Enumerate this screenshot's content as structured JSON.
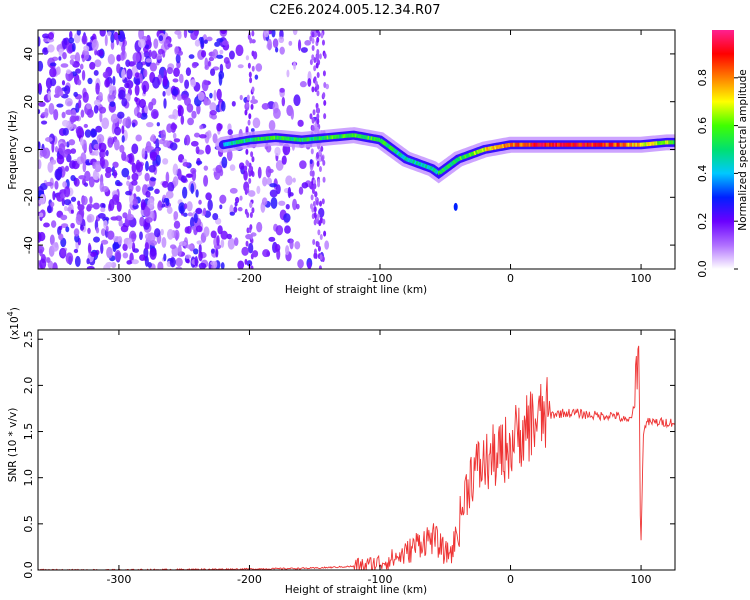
{
  "title": "C2E6.2024.005.12.34.R07",
  "chart_data": [
    {
      "type": "heatmap",
      "xlabel": "Height of straight line (km)",
      "ylabel": "Frequency (Hz)",
      "xlim": [
        -362,
        126
      ],
      "ylim": [
        -50,
        50
      ],
      "x_ticks": [
        -300,
        -200,
        -100,
        0,
        100
      ],
      "x_tick_labels": [
        "-300",
        "-200",
        "-100",
        "0",
        "100"
      ],
      "y_ticks": [
        -40,
        -20,
        0,
        20,
        40
      ],
      "y_tick_labels": [
        "-40",
        "-20",
        "0",
        "20",
        "40"
      ],
      "colorbar": {
        "label": "Normalized spectral amplitude",
        "range": [
          0,
          1
        ],
        "ticks": [
          0.0,
          0.2,
          0.4,
          0.6,
          0.8
        ],
        "tick_labels": [
          "0.0",
          "0.2",
          "0.4",
          "0.6",
          "0.8"
        ],
        "colors": [
          "#ffffff",
          "#b070ff",
          "#6a00ff",
          "#0020ff",
          "#00c8ff",
          "#00e070",
          "#40ff00",
          "#ffff00",
          "#ff8000",
          "#ff0000",
          "#ff2090"
        ]
      },
      "ridge": {
        "name": "",
        "x": [
          -220,
          -200,
          -180,
          -160,
          -140,
          -120,
          -100,
          -90,
          -80,
          -70,
          -60,
          -55,
          -50,
          -45,
          -40,
          -30,
          -20,
          -10,
          0,
          20,
          40,
          60,
          80,
          100,
          120
        ],
        "y": [
          2,
          4,
          5,
          4,
          5,
          6,
          4,
          0,
          -4,
          -6,
          -8,
          -10,
          -8,
          -6,
          -4,
          -2,
          0,
          1,
          2,
          2,
          2,
          2,
          2,
          2,
          3
        ],
        "amplitude": [
          0.45,
          0.5,
          0.55,
          0.5,
          0.55,
          0.55,
          0.55,
          0.5,
          0.45,
          0.45,
          0.5,
          0.5,
          0.5,
          0.5,
          0.55,
          0.6,
          0.7,
          0.75,
          0.8,
          0.9,
          0.9,
          0.9,
          0.85,
          0.7,
          0.6
        ]
      },
      "noise_region_x": [
        -362,
        -140
      ],
      "grid": false
    },
    {
      "type": "line",
      "xlabel": "Height of straight line (km)",
      "ylabel": "SNR (10 * v/v)",
      "y_exponent_label": "(x10",
      "y_exponent": "4",
      "xlim": [
        -362,
        126
      ],
      "ylim": [
        0,
        2.6
      ],
      "x_ticks": [
        -300,
        -200,
        -100,
        0,
        100
      ],
      "x_tick_labels": [
        "-300",
        "-200",
        "-100",
        "0",
        "100"
      ],
      "y_ticks": [
        0.0,
        0.5,
        1.0,
        1.5,
        2.0,
        2.5
      ],
      "y_tick_labels": [
        "0.0",
        "0.5",
        "1.0",
        "1.5",
        "2.0",
        "2.5"
      ],
      "color": "#ee3333",
      "series": [
        {
          "x": [
            -362,
            -300,
            -200,
            -150,
            -120,
            -110,
            -100,
            -90,
            -80,
            -70,
            -60,
            -55,
            -50,
            -45,
            -40,
            -35,
            -30,
            -25,
            -20,
            -15,
            -10,
            -5,
            0,
            5,
            10,
            20,
            30,
            40,
            50,
            60,
            70,
            80,
            90,
            95,
            98,
            100,
            102,
            105,
            110,
            126
          ],
          "values": [
            0.0,
            0.0,
            0.01,
            0.02,
            0.04,
            0.05,
            0.08,
            0.12,
            0.18,
            0.3,
            0.35,
            0.28,
            0.18,
            0.2,
            0.45,
            0.8,
            1.05,
            1.1,
            1.15,
            1.2,
            1.25,
            1.3,
            1.35,
            1.45,
            1.55,
            1.62,
            1.68,
            1.7,
            1.7,
            1.68,
            1.67,
            1.68,
            1.6,
            1.75,
            2.55,
            0.35,
            1.55,
            1.6,
            1.6,
            1.6
          ]
        }
      ],
      "grid": false
    }
  ]
}
